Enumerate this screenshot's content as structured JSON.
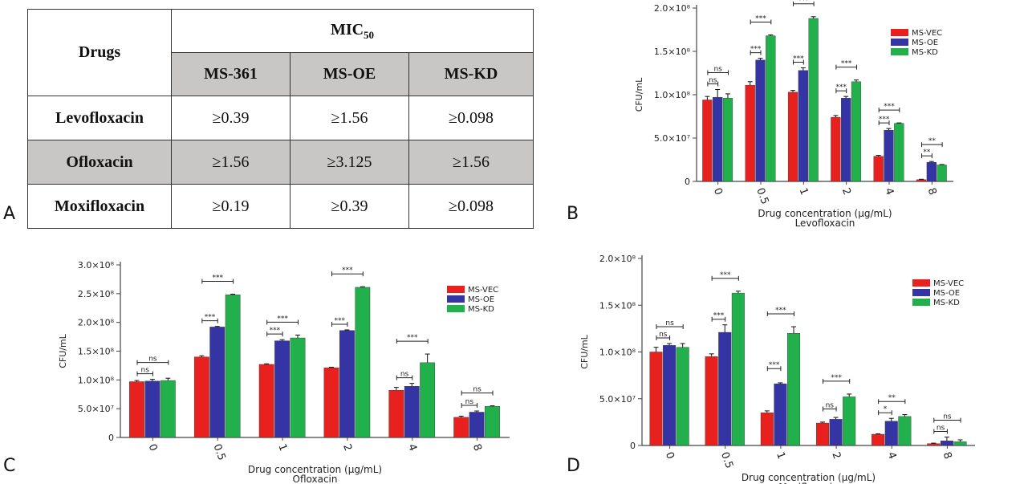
{
  "panel_letters": {
    "a": "A",
    "b": "B",
    "c": "C",
    "d": "D"
  },
  "table": {
    "drugs_header": "Drugs",
    "mic_header": "MIC",
    "mic_subscript": "50",
    "strains": [
      "MS-361",
      "MS-OE",
      "MS-KD"
    ],
    "rows": [
      {
        "drug": "Levofloxacin",
        "values": [
          "≥0.39",
          "≥1.56",
          "≥0.098"
        ]
      },
      {
        "drug": "Ofloxacin",
        "values": [
          "≥1.56",
          "≥3.125",
          "≥1.56"
        ]
      },
      {
        "drug": "Moxifloxacin",
        "values": [
          "≥0.19",
          "≥0.39",
          "≥0.098"
        ]
      }
    ]
  },
  "colors": {
    "MS-VEC": "#e8201e",
    "MS-OE": "#3434a4",
    "MS-KD": "#22b04c"
  },
  "chart_data": [
    {
      "panel": "B",
      "type": "bar",
      "xlabel": "Drug concentration (μg/mL)",
      "subtitle": "Levofloxacin",
      "ylabel": "CFU/mL",
      "categories": [
        "0",
        "0.5",
        "1",
        "2",
        "4",
        "8"
      ],
      "ylim": [
        0,
        200000000
      ],
      "yticks": [
        {
          "value": 0,
          "label": "0"
        },
        {
          "value": 50000000,
          "label": "5.0×10⁷"
        },
        {
          "value": 100000000,
          "label": "1.0×10⁸"
        },
        {
          "value": 150000000,
          "label": "1.5×10⁸"
        },
        {
          "value": 200000000,
          "label": "2.0×10⁸"
        }
      ],
      "series": [
        {
          "name": "MS-VEC",
          "values": [
            94000000,
            111000000,
            103000000,
            74000000,
            29000000,
            2000000
          ],
          "errors": [
            4000000,
            4000000,
            2000000,
            2000000,
            1000000,
            500000
          ]
        },
        {
          "name": "MS-OE",
          "values": [
            97000000,
            140000000,
            128000000,
            96000000,
            59000000,
            22000000
          ],
          "errors": [
            9000000,
            2000000,
            3000000,
            2000000,
            2000000,
            1000000
          ]
        },
        {
          "name": "MS-KD",
          "values": [
            96000000,
            168000000,
            188000000,
            115000000,
            67000000,
            19000000
          ],
          "errors": [
            5000000,
            1000000,
            2000000,
            2000000,
            500000,
            500000
          ]
        }
      ],
      "significance": [
        {
          "cat": 0,
          "pair": "ve-oe",
          "label": "ns"
        },
        {
          "cat": 0,
          "pair": "ve-kd",
          "label": "ns"
        },
        {
          "cat": 1,
          "pair": "ve-oe",
          "label": "***"
        },
        {
          "cat": 1,
          "pair": "ve-kd",
          "label": "***"
        },
        {
          "cat": 2,
          "pair": "ve-oe",
          "label": "***"
        },
        {
          "cat": 2,
          "pair": "ve-kd",
          "label": "***"
        },
        {
          "cat": 3,
          "pair": "ve-oe",
          "label": "***"
        },
        {
          "cat": 3,
          "pair": "ve-kd",
          "label": "***"
        },
        {
          "cat": 4,
          "pair": "ve-oe",
          "label": "***"
        },
        {
          "cat": 4,
          "pair": "ve-kd",
          "label": "***"
        },
        {
          "cat": 5,
          "pair": "ve-oe",
          "label": "**"
        },
        {
          "cat": 5,
          "pair": "ve-kd",
          "label": "**"
        }
      ],
      "legend": "top-right"
    },
    {
      "panel": "C",
      "type": "bar",
      "xlabel": "Drug concentration (μg/mL)",
      "subtitle": "Ofloxacin",
      "ylabel": "CFU/mL",
      "categories": [
        "0",
        "0.5",
        "1",
        "2",
        "4",
        "8"
      ],
      "ylim": [
        0,
        300000000
      ],
      "yticks": [
        {
          "value": 0,
          "label": "0"
        },
        {
          "value": 50000000,
          "label": "5.0×10⁷"
        },
        {
          "value": 100000000,
          "label": "1.0×10⁸"
        },
        {
          "value": 150000000,
          "label": "1.5×10⁸"
        },
        {
          "value": 200000000,
          "label": "2.0×10⁸"
        },
        {
          "value": 250000000,
          "label": "2.5×10⁸"
        },
        {
          "value": 300000000,
          "label": "3.0×10⁸"
        }
      ],
      "series": [
        {
          "name": "MS-VEC",
          "values": [
            97000000,
            140000000,
            127000000,
            121000000,
            82000000,
            35000000
          ],
          "errors": [
            2000000,
            2000000,
            1000000,
            1000000,
            5000000,
            2000000
          ]
        },
        {
          "name": "MS-OE",
          "values": [
            98000000,
            192000000,
            168000000,
            186000000,
            89000000,
            44000000
          ],
          "errors": [
            3000000,
            1000000,
            2000000,
            1000000,
            5000000,
            2000000
          ]
        },
        {
          "name": "MS-KD",
          "values": [
            99000000,
            248000000,
            173000000,
            261000000,
            130000000,
            54000000
          ],
          "errors": [
            4000000,
            1000000,
            5000000,
            1000000,
            15000000,
            1000000
          ]
        }
      ],
      "significance": [
        {
          "cat": 0,
          "pair": "ve-oe",
          "label": "ns"
        },
        {
          "cat": 0,
          "pair": "ve-kd",
          "label": "ns"
        },
        {
          "cat": 1,
          "pair": "ve-oe",
          "label": "***"
        },
        {
          "cat": 1,
          "pair": "ve-kd",
          "label": "***"
        },
        {
          "cat": 2,
          "pair": "ve-oe",
          "label": "***"
        },
        {
          "cat": 2,
          "pair": "ve-kd",
          "label": "***"
        },
        {
          "cat": 3,
          "pair": "ve-oe",
          "label": "***"
        },
        {
          "cat": 3,
          "pair": "ve-kd",
          "label": "***"
        },
        {
          "cat": 4,
          "pair": "ve-oe",
          "label": "ns"
        },
        {
          "cat": 4,
          "pair": "ve-kd",
          "label": "***"
        },
        {
          "cat": 5,
          "pair": "ve-oe",
          "label": "ns"
        },
        {
          "cat": 5,
          "pair": "ve-kd",
          "label": "ns"
        }
      ],
      "legend": "top-right"
    },
    {
      "panel": "D",
      "type": "bar",
      "xlabel": "Drug concentration (μg/mL)",
      "subtitle": "Moxifloxacin",
      "ylabel": "CFU/mL",
      "categories": [
        "0",
        "0.5",
        "1",
        "2",
        "4",
        "8"
      ],
      "ylim": [
        0,
        200000000
      ],
      "yticks": [
        {
          "value": 0,
          "label": "0"
        },
        {
          "value": 50000000,
          "label": "5.0×10⁷"
        },
        {
          "value": 100000000,
          "label": "1.0×10⁸"
        },
        {
          "value": 150000000,
          "label": "1.5×10⁸"
        },
        {
          "value": 200000000,
          "label": "2.0×10⁸"
        }
      ],
      "series": [
        {
          "name": "MS-VEC",
          "values": [
            100000000,
            95000000,
            35000000,
            24000000,
            12000000,
            2000000
          ],
          "errors": [
            5000000,
            3000000,
            2000000,
            1000000,
            500000,
            500000
          ]
        },
        {
          "name": "MS-OE",
          "values": [
            107000000,
            121000000,
            66000000,
            28000000,
            26000000,
            5000000
          ],
          "errors": [
            2000000,
            8000000,
            1000000,
            2000000,
            3000000,
            4000000
          ]
        },
        {
          "name": "MS-KD",
          "values": [
            105000000,
            163000000,
            120000000,
            52000000,
            31000000,
            4000000
          ],
          "errors": [
            4000000,
            2000000,
            7000000,
            3000000,
            2000000,
            2000000
          ]
        }
      ],
      "significance": [
        {
          "cat": 0,
          "pair": "ve-oe",
          "label": "ns"
        },
        {
          "cat": 0,
          "pair": "ve-kd",
          "label": "ns"
        },
        {
          "cat": 1,
          "pair": "ve-oe",
          "label": "***"
        },
        {
          "cat": 1,
          "pair": "ve-kd",
          "label": "***"
        },
        {
          "cat": 2,
          "pair": "ve-oe",
          "label": "***"
        },
        {
          "cat": 2,
          "pair": "ve-kd",
          "label": "***"
        },
        {
          "cat": 3,
          "pair": "ve-oe",
          "label": "ns"
        },
        {
          "cat": 3,
          "pair": "ve-kd",
          "label": "***"
        },
        {
          "cat": 4,
          "pair": "ve-oe",
          "label": "*"
        },
        {
          "cat": 4,
          "pair": "ve-kd",
          "label": "**"
        },
        {
          "cat": 5,
          "pair": "ve-oe",
          "label": "ns"
        },
        {
          "cat": 5,
          "pair": "ve-kd",
          "label": "ns"
        }
      ],
      "legend": "top-right"
    }
  ]
}
